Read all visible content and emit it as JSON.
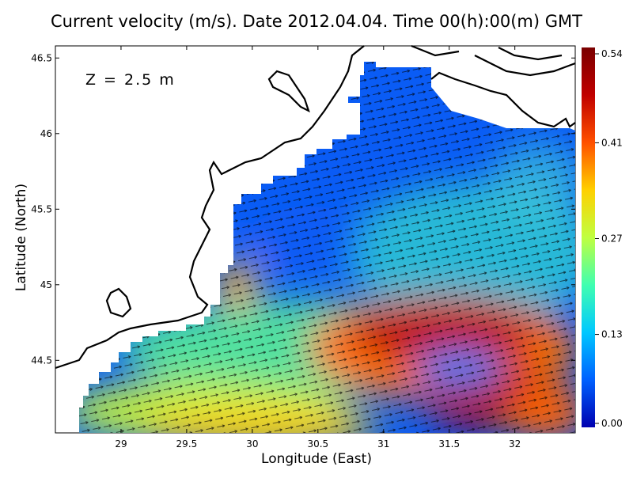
{
  "chart_data": {
    "type": "map",
    "title": "Current velocity (m/s). Date 2012.04.04. Time 00(h):00(m) GMT",
    "annotation": "Z = 2.5 m",
    "x_label": "Longitude (East)",
    "y_label": "Latitude (North)",
    "xlim": [
      28.5,
      32.46
    ],
    "ylim": [
      44.02,
      46.58
    ],
    "xticks": [
      29,
      29.5,
      30,
      30.5,
      31,
      31.5,
      32
    ],
    "yticks": [
      44.5,
      45,
      45.5,
      46,
      46.5
    ],
    "colorbar": {
      "lim": [
        0,
        0.54
      ],
      "ticks": [
        {
          "value": 0,
          "label": "0.00"
        },
        {
          "value": 0.13,
          "label": "0.13"
        },
        {
          "value": 0.27,
          "label": "0.27"
        },
        {
          "value": 0.41,
          "label": "0.41"
        },
        {
          "value": 0.54,
          "label": "0.54"
        }
      ],
      "colors": [
        "#0000b0",
        "#0060ff",
        "#00c8ff",
        "#40ffb0",
        "#c0ff40",
        "#ffd000",
        "#ff5000",
        "#c00000",
        "#7a0000"
      ]
    }
  }
}
